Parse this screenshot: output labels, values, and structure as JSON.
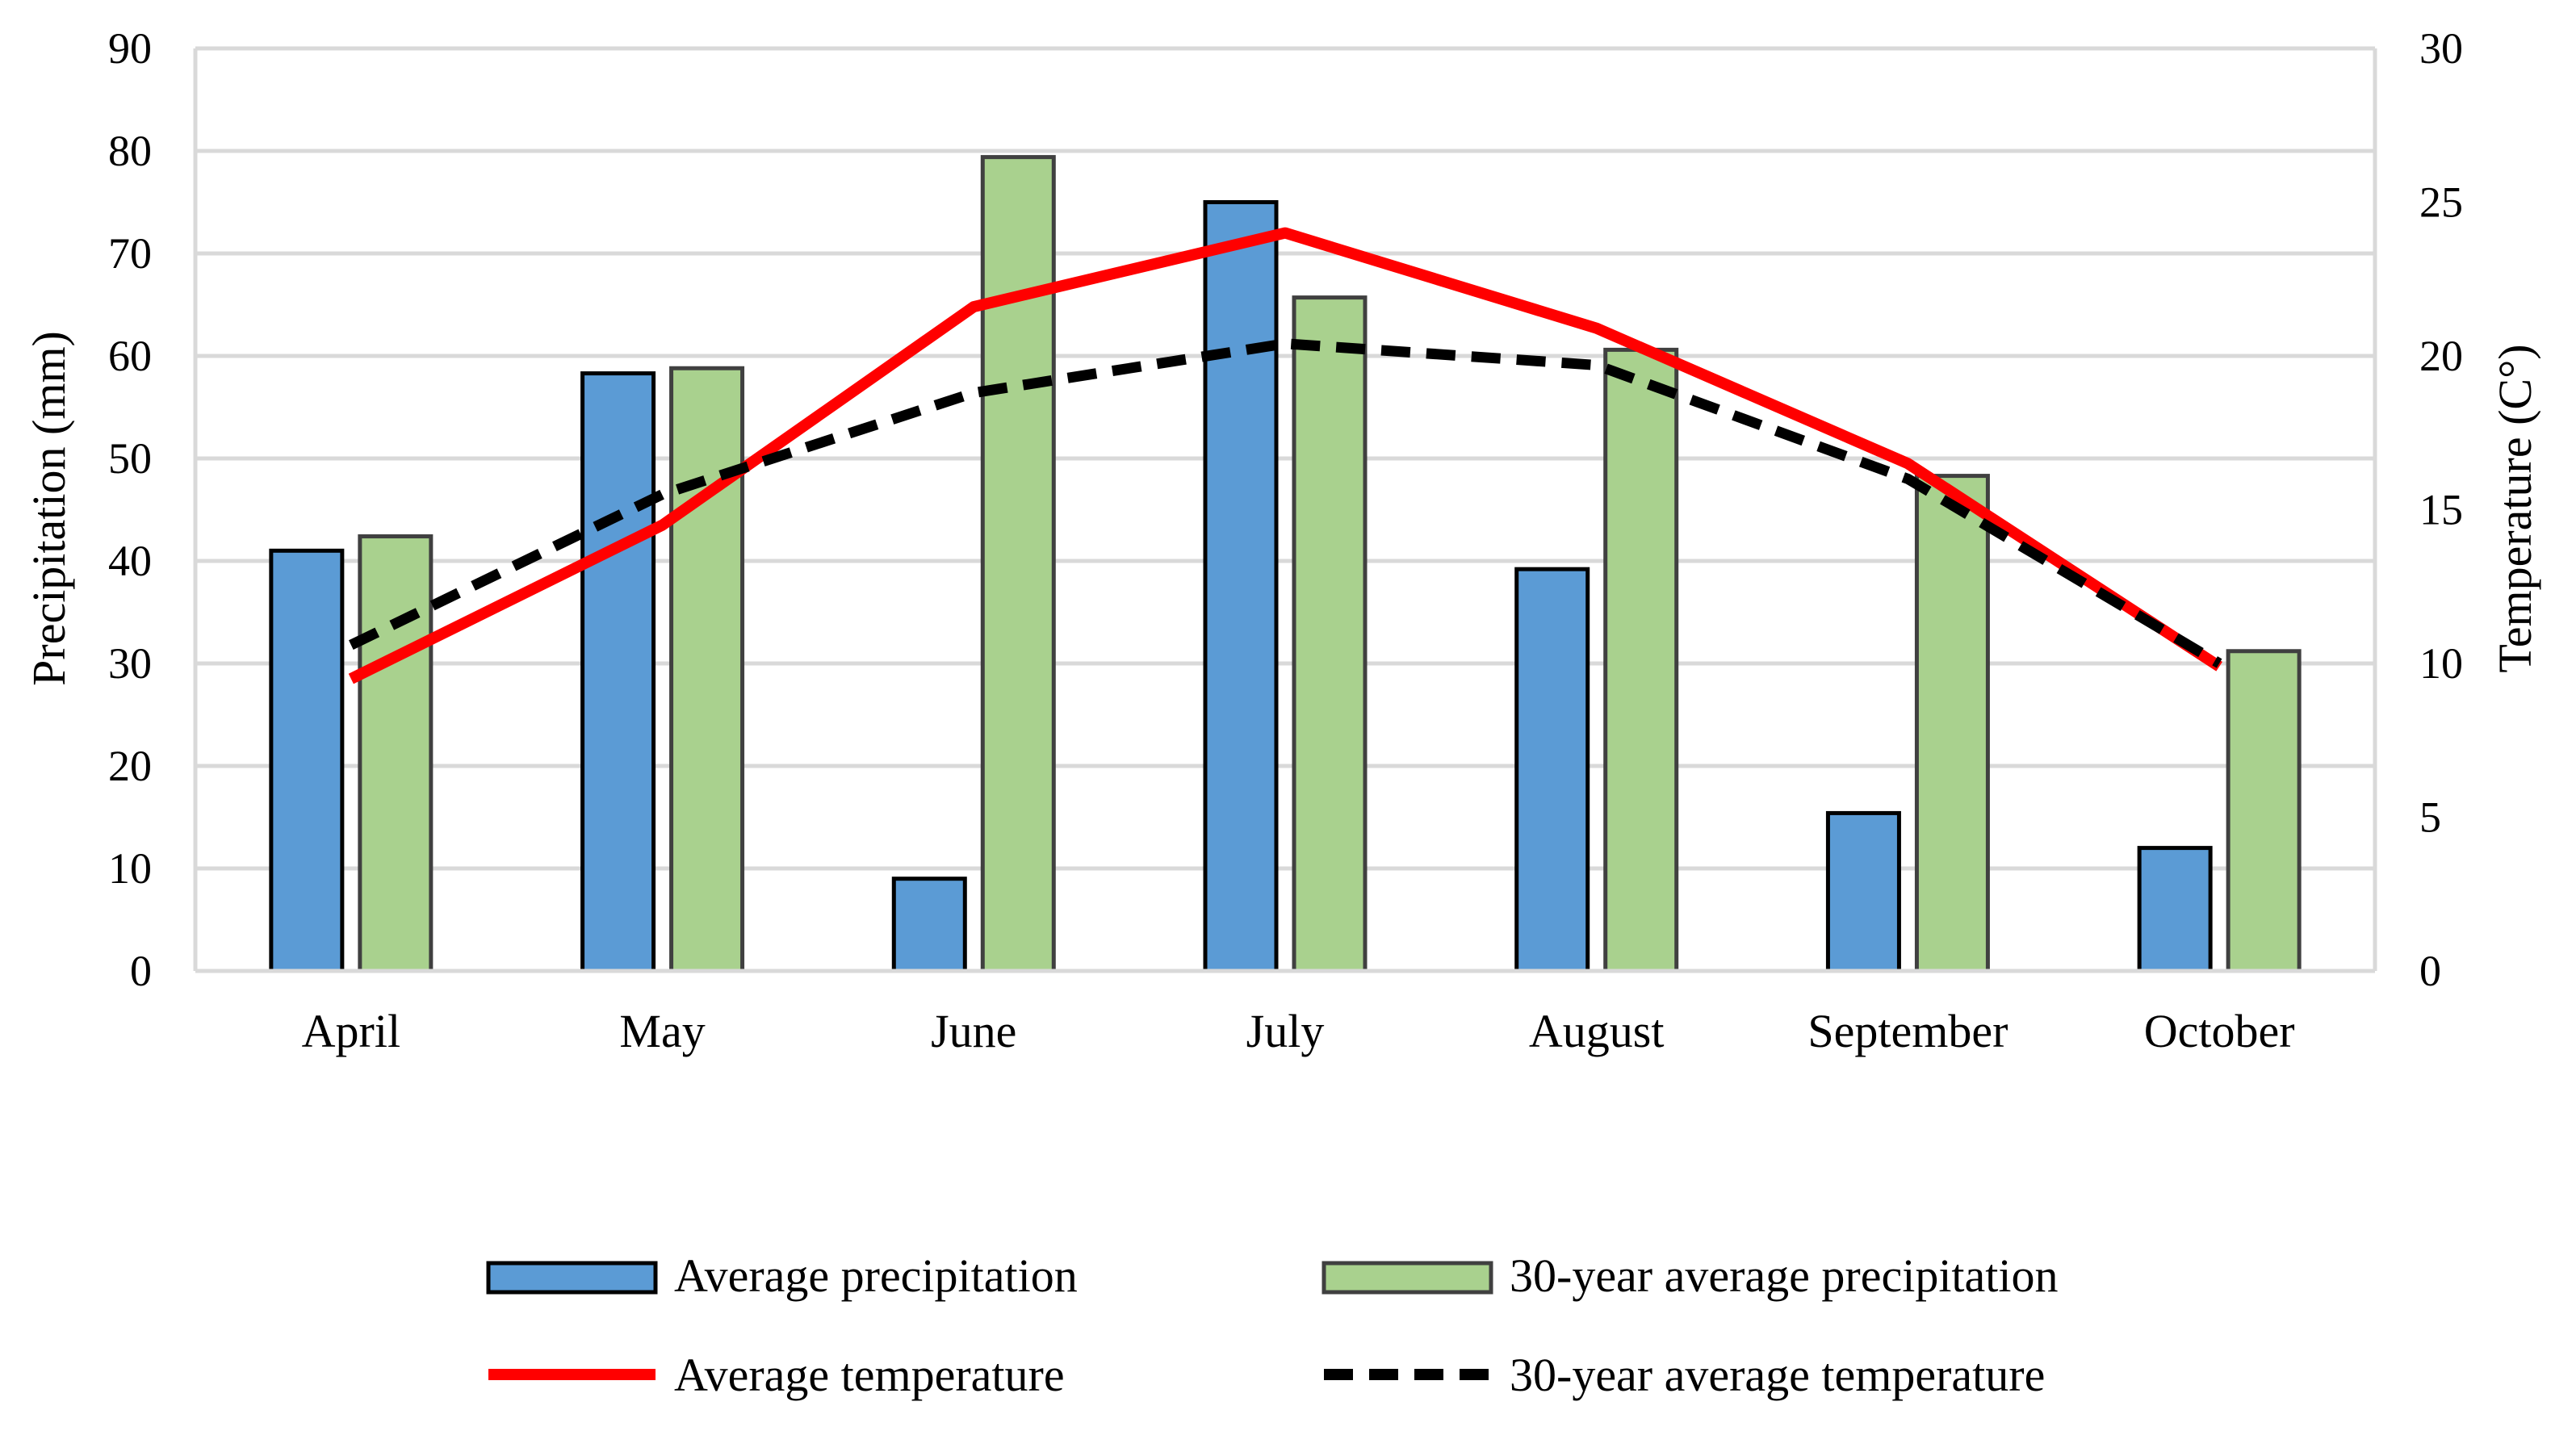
{
  "chart_data": {
    "type": "bar+line",
    "categories": [
      "April",
      "May",
      "June",
      "July",
      "August",
      "September",
      "October"
    ],
    "bar_series": [
      {
        "name": "Average precipitation",
        "color": "#5b9bd5",
        "values": [
          41,
          58.3,
          9,
          75,
          39.2,
          15.4,
          12
        ]
      },
      {
        "name": "30-year average precipitation",
        "color": "#a9d18e",
        "values": [
          42.4,
          58.8,
          79.4,
          65.7,
          60.6,
          48.3,
          31.2
        ]
      }
    ],
    "line_series": [
      {
        "name": "Average temperature",
        "color": "#ff0000",
        "dash": "solid",
        "values": [
          9.5,
          14.5,
          21.6,
          24.0,
          20.9,
          16.5,
          9.9
        ]
      },
      {
        "name": "30-year average temperature",
        "color": "#000000",
        "dash": "dashed",
        "values": [
          10.6,
          15.5,
          18.8,
          20.4,
          19.7,
          16.0,
          10.0
        ]
      }
    ],
    "y_left": {
      "label": "Precipitation (mm)",
      "min": 0,
      "max": 90,
      "ticks": [
        "0",
        "10",
        "20",
        "30",
        "40",
        "50",
        "60",
        "70",
        "80",
        "90"
      ]
    },
    "y_right": {
      "label": "Temperature (C°)",
      "min": 0,
      "max": 30,
      "ticks": [
        "0",
        "5",
        "10",
        "15",
        "20",
        "25",
        "30"
      ]
    },
    "grid": true,
    "legend_position": "bottom"
  }
}
